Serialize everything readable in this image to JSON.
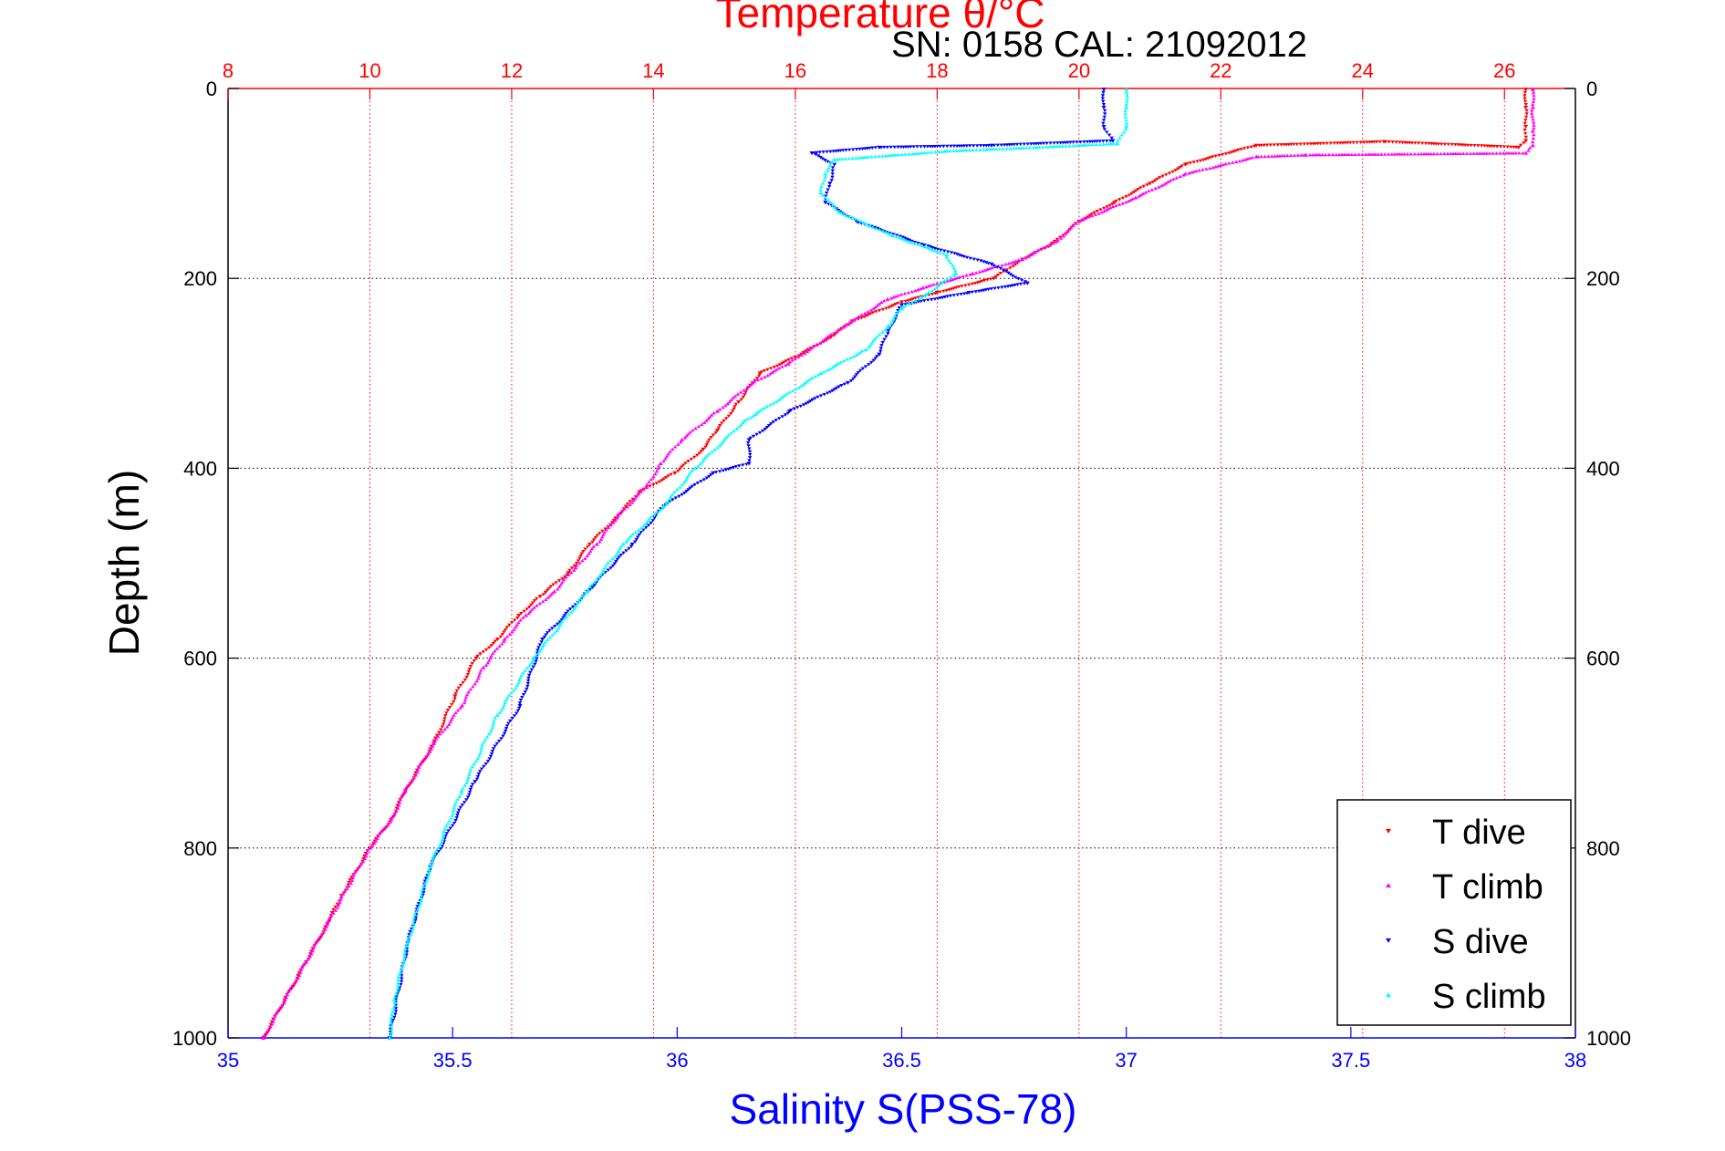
{
  "chart_data": {
    "type": "scatter",
    "title": "Temperature θ/°C",
    "subtitle": "SN: 0158  CAL: 21092012",
    "xlabel_bottom": "Salinity S(PSS-78)",
    "ylabel": "Depth (m)",
    "temperature_axis": {
      "range": [
        8,
        27
      ],
      "ticks": [
        "8",
        "10",
        "12",
        "14",
        "16",
        "18",
        "20",
        "22",
        "24",
        "26"
      ],
      "tick_values": [
        8,
        10,
        12,
        14,
        16,
        18,
        20,
        22,
        24,
        26
      ],
      "color": "#ff0000",
      "grid": true
    },
    "salinity_axis": {
      "range": [
        35,
        38
      ],
      "ticks": [
        "35",
        "35.5",
        "36",
        "36.5",
        "37",
        "37.5",
        "38"
      ],
      "tick_values": [
        35,
        35.5,
        36,
        36.5,
        37,
        37.5,
        38
      ],
      "color": "#0000ff"
    },
    "depth_axis": {
      "range": [
        0,
        1000
      ],
      "reversed": true,
      "ticks": [
        "0",
        "200",
        "400",
        "600",
        "800",
        "1000"
      ],
      "tick_values": [
        0,
        200,
        400,
        600,
        800,
        1000
      ],
      "grid": true
    },
    "legend": {
      "position": "bottom-right"
    },
    "series": [
      {
        "name": "T dive",
        "variable": "temperature",
        "color": "#ff0000",
        "marker": "triangle-down",
        "points": [
          [
            26.3,
            1
          ],
          [
            26.3,
            20
          ],
          [
            26.3,
            40
          ],
          [
            26.3,
            55
          ],
          [
            26.2,
            62
          ],
          [
            24.3,
            56
          ],
          [
            22.5,
            60
          ],
          [
            21.5,
            80
          ],
          [
            21.0,
            100
          ],
          [
            20.5,
            120
          ],
          [
            20.0,
            140
          ],
          [
            19.6,
            165
          ],
          [
            19.2,
            180
          ],
          [
            18.8,
            200
          ],
          [
            18.0,
            215
          ],
          [
            17.5,
            225
          ],
          [
            16.8,
            245
          ],
          [
            16.5,
            262
          ],
          [
            16.0,
            283
          ],
          [
            15.5,
            300
          ],
          [
            15.2,
            330
          ],
          [
            14.9,
            360
          ],
          [
            14.7,
            380
          ],
          [
            14.3,
            405
          ],
          [
            13.8,
            425
          ],
          [
            13.5,
            450
          ],
          [
            13.1,
            480
          ],
          [
            12.8,
            510
          ],
          [
            12.4,
            535
          ],
          [
            12.1,
            555
          ],
          [
            11.8,
            580
          ],
          [
            11.5,
            600
          ],
          [
            11.2,
            640
          ],
          [
            10.9,
            690
          ],
          [
            10.5,
            740
          ],
          [
            10.3,
            770
          ],
          [
            10.0,
            800
          ],
          [
            9.6,
            850
          ],
          [
            9.4,
            880
          ],
          [
            9.1,
            920
          ],
          [
            8.8,
            960
          ],
          [
            8.5,
            1000
          ]
        ]
      },
      {
        "name": "T climb",
        "variable": "temperature",
        "color": "#ff00ff",
        "marker": "triangle-up",
        "points": [
          [
            26.4,
            1
          ],
          [
            26.4,
            20
          ],
          [
            26.4,
            45
          ],
          [
            26.4,
            60
          ],
          [
            26.3,
            68
          ],
          [
            23.2,
            70
          ],
          [
            22.5,
            72
          ],
          [
            21.5,
            90
          ],
          [
            20.8,
            115
          ],
          [
            20.0,
            140
          ],
          [
            19.7,
            160
          ],
          [
            19.2,
            180
          ],
          [
            18.5,
            195
          ],
          [
            17.8,
            210
          ],
          [
            17.3,
            222
          ],
          [
            16.7,
            250
          ],
          [
            16.3,
            270
          ],
          [
            15.9,
            290
          ],
          [
            15.4,
            310
          ],
          [
            14.9,
            340
          ],
          [
            14.4,
            370
          ],
          [
            14.1,
            395
          ],
          [
            13.9,
            420
          ],
          [
            13.5,
            450
          ],
          [
            13.2,
            480
          ],
          [
            12.9,
            505
          ],
          [
            12.6,
            530
          ],
          [
            12.2,
            555
          ],
          [
            11.9,
            580
          ],
          [
            11.6,
            610
          ],
          [
            11.3,
            650
          ],
          [
            10.9,
            690
          ],
          [
            10.5,
            740
          ],
          [
            10.3,
            770
          ],
          [
            10.0,
            800
          ],
          [
            9.7,
            840
          ],
          [
            9.4,
            880
          ],
          [
            9.1,
            920
          ],
          [
            8.8,
            960
          ],
          [
            8.5,
            1000
          ]
        ]
      },
      {
        "name": "S dive",
        "variable": "salinity",
        "color": "#0000ff",
        "marker": "triangle-down",
        "points": [
          [
            36.95,
            1
          ],
          [
            36.95,
            20
          ],
          [
            36.95,
            40
          ],
          [
            36.97,
            55
          ],
          [
            36.7,
            60
          ],
          [
            36.45,
            62
          ],
          [
            36.3,
            68
          ],
          [
            36.35,
            80
          ],
          [
            36.34,
            100
          ],
          [
            36.33,
            120
          ],
          [
            36.4,
            140
          ],
          [
            36.55,
            165
          ],
          [
            36.7,
            185
          ],
          [
            36.78,
            205
          ],
          [
            36.65,
            215
          ],
          [
            36.5,
            228
          ],
          [
            36.47,
            255
          ],
          [
            36.45,
            280
          ],
          [
            36.38,
            310
          ],
          [
            36.25,
            340
          ],
          [
            36.16,
            370
          ],
          [
            36.16,
            395
          ],
          [
            36.08,
            405
          ],
          [
            35.97,
            440
          ],
          [
            35.9,
            480
          ],
          [
            35.8,
            530
          ],
          [
            35.7,
            580
          ],
          [
            35.65,
            650
          ],
          [
            35.55,
            730
          ],
          [
            35.45,
            820
          ],
          [
            35.4,
            900
          ],
          [
            35.38,
            950
          ],
          [
            35.36,
            1000
          ]
        ]
      },
      {
        "name": "S climb",
        "variable": "salinity",
        "color": "#00ffff",
        "marker": "triangle-up",
        "points": [
          [
            37.0,
            1
          ],
          [
            37.0,
            20
          ],
          [
            37.0,
            40
          ],
          [
            36.98,
            58
          ],
          [
            36.8,
            62
          ],
          [
            36.6,
            66
          ],
          [
            36.35,
            75
          ],
          [
            36.33,
            90
          ],
          [
            36.32,
            110
          ],
          [
            36.36,
            130
          ],
          [
            36.48,
            155
          ],
          [
            36.6,
            175
          ],
          [
            36.62,
            195
          ],
          [
            36.56,
            215
          ],
          [
            36.5,
            232
          ],
          [
            36.47,
            250
          ],
          [
            36.42,
            275
          ],
          [
            36.32,
            300
          ],
          [
            36.15,
            350
          ],
          [
            36.04,
            400
          ],
          [
            35.97,
            440
          ],
          [
            35.88,
            480
          ],
          [
            35.8,
            530
          ],
          [
            35.68,
            600
          ],
          [
            35.6,
            660
          ],
          [
            35.52,
            740
          ],
          [
            35.45,
            820
          ],
          [
            35.4,
            900
          ],
          [
            35.37,
            960
          ],
          [
            35.36,
            1000
          ]
        ]
      }
    ]
  }
}
